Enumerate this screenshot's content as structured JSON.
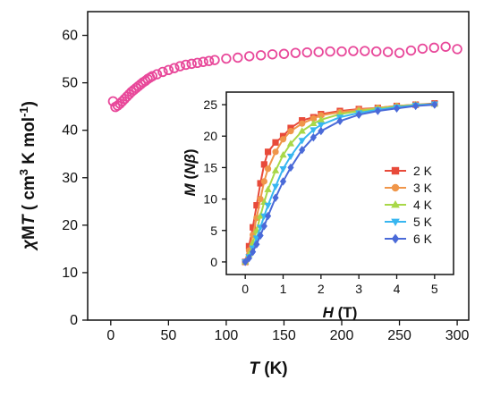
{
  "chart_data": [
    {
      "type": "scatter",
      "xlabel": {
        "symbol": "T",
        "unit": " (K)"
      },
      "ylabel": {
        "prefix": "χ",
        "main": "M",
        "symbol": "T",
        "unit_open": " ( cm",
        "sup1": "3",
        "unit_mid": " K mol",
        "sup2": "-1",
        "unit_close": ")"
      },
      "xlim": [
        -20,
        310
      ],
      "ylim": [
        0,
        65
      ],
      "xticks": [
        0,
        50,
        100,
        150,
        200,
        250,
        300
      ],
      "yticks": [
        0,
        10,
        20,
        30,
        40,
        50,
        60
      ],
      "marker": "open-circle",
      "color": "#e8489a",
      "series": [
        {
          "x": [
            2,
            4,
            6,
            8,
            10,
            12,
            14,
            16,
            18,
            20,
            22,
            24,
            26,
            28,
            30,
            32,
            34,
            36,
            40,
            45,
            50,
            55,
            60,
            65,
            70,
            75,
            80,
            85,
            90,
            100,
            110,
            120,
            130,
            140,
            150,
            160,
            170,
            180,
            190,
            200,
            210,
            220,
            230,
            240,
            250,
            260,
            270,
            280,
            290,
            300
          ],
          "y": [
            46.1,
            44.9,
            45.2,
            45.6,
            46.1,
            46.6,
            47.1,
            47.6,
            48.1,
            48.5,
            48.9,
            49.3,
            49.7,
            50.1,
            50.4,
            50.8,
            51.1,
            51.4,
            51.8,
            52.3,
            52.7,
            53.1,
            53.5,
            53.8,
            54.0,
            54.2,
            54.4,
            54.6,
            54.8,
            55.1,
            55.3,
            55.6,
            55.8,
            56.0,
            56.1,
            56.3,
            56.4,
            56.5,
            56.6,
            56.6,
            56.7,
            56.7,
            56.6,
            56.5,
            56.3,
            56.8,
            57.2,
            57.4,
            57.6,
            57.1
          ]
        }
      ]
    },
    {
      "type": "line",
      "xlabel": {
        "symbol": "H",
        "unit": " (T)"
      },
      "ylabel": {
        "symbol": "M",
        "unit_open": " (",
        "unit_italic": "Nβ",
        "unit_close": ")"
      },
      "xlim": [
        -0.5,
        5.5
      ],
      "ylim": [
        -2,
        27
      ],
      "xticks": [
        0,
        1,
        2,
        3,
        4,
        5
      ],
      "yticks": [
        0,
        5,
        10,
        15,
        20,
        25
      ],
      "legend_position": "center-right",
      "series": [
        {
          "name": "2 K",
          "color": "#e84a3a",
          "marker": "square",
          "x": [
            0,
            0.1,
            0.2,
            0.3,
            0.4,
            0.5,
            0.6,
            0.8,
            1.0,
            1.2,
            1.5,
            1.8,
            2.0,
            2.5,
            3.0,
            3.5,
            4.0,
            4.5,
            5.0
          ],
          "y": [
            0,
            2.5,
            5.5,
            9.0,
            12.5,
            15.5,
            17.5,
            19.0,
            20.0,
            21.3,
            22.5,
            23.0,
            23.5,
            24.0,
            24.3,
            24.5,
            24.8,
            25.0,
            25.2
          ]
        },
        {
          "name": "3 K",
          "color": "#f0964a",
          "marker": "circle",
          "x": [
            0,
            0.1,
            0.2,
            0.3,
            0.4,
            0.5,
            0.6,
            0.8,
            1.0,
            1.2,
            1.5,
            1.8,
            2.0,
            2.5,
            3.0,
            3.5,
            4.0,
            4.5,
            5.0
          ],
          "y": [
            0,
            1.8,
            4.3,
            7.0,
            10.0,
            12.8,
            14.8,
            17.5,
            19.5,
            20.8,
            22.0,
            22.8,
            23.3,
            23.8,
            24.2,
            24.5,
            24.8,
            25.0,
            25.1
          ]
        },
        {
          "name": "4 K",
          "color": "#a8d848",
          "marker": "triangle-up",
          "x": [
            0,
            0.1,
            0.2,
            0.3,
            0.4,
            0.5,
            0.6,
            0.8,
            1.0,
            1.2,
            1.5,
            1.8,
            2.0,
            2.5,
            3.0,
            3.5,
            4.0,
            4.5,
            5.0
          ],
          "y": [
            0,
            1.2,
            3.0,
            5.0,
            7.3,
            9.5,
            11.5,
            14.5,
            17.0,
            18.8,
            20.8,
            22.0,
            22.6,
            23.5,
            24.0,
            24.4,
            24.7,
            25.0,
            25.1
          ]
        },
        {
          "name": "5 K",
          "color": "#38b6f0",
          "marker": "triangle-down",
          "x": [
            0,
            0.1,
            0.2,
            0.3,
            0.4,
            0.5,
            0.6,
            0.8,
            1.0,
            1.2,
            1.5,
            1.8,
            2.0,
            2.5,
            3.0,
            3.5,
            4.0,
            4.5,
            5.0
          ],
          "y": [
            0,
            0.8,
            2.2,
            3.8,
            5.5,
            7.3,
            9.0,
            12.0,
            14.8,
            16.8,
            19.3,
            21.0,
            21.8,
            23.0,
            23.7,
            24.2,
            24.6,
            24.9,
            25.1
          ]
        },
        {
          "name": "6 K",
          "color": "#4a6ad8",
          "marker": "diamond",
          "x": [
            0,
            0.1,
            0.2,
            0.3,
            0.4,
            0.5,
            0.6,
            0.8,
            1.0,
            1.2,
            1.5,
            1.8,
            2.0,
            2.5,
            3.0,
            3.5,
            4.0,
            4.5,
            5.0
          ],
          "y": [
            0,
            0.6,
            1.6,
            2.8,
            4.2,
            5.7,
            7.3,
            10.2,
            12.8,
            15.0,
            17.8,
            19.8,
            20.8,
            22.4,
            23.4,
            24.0,
            24.4,
            24.8,
            25.0
          ]
        }
      ]
    }
  ]
}
